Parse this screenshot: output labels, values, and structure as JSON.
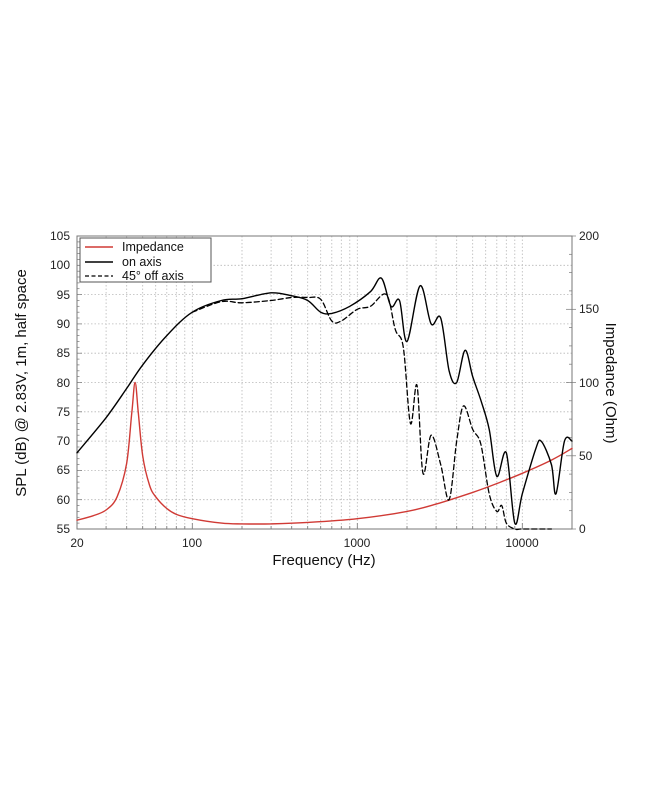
{
  "chart_data": {
    "type": "line",
    "title": "",
    "xlabel": "Frequency (Hz)",
    "ylabel": "SPL (dB) @ 2.83V, 1m, half space",
    "y2label": "Impedance (Ohm)",
    "xscale": "log",
    "xlim": [
      20,
      20000
    ],
    "ylim": [
      55,
      105
    ],
    "y2lim": [
      0,
      200
    ],
    "grid": true,
    "legend_position": "upper left",
    "x_ticks": [
      "20",
      "100",
      "1000",
      "10000"
    ],
    "y_ticks": [
      "55",
      "60",
      "65",
      "70",
      "75",
      "80",
      "85",
      "90",
      "95",
      "100",
      "105"
    ],
    "y2_ticks": [
      "0",
      "50",
      "100",
      "150",
      "200"
    ],
    "series": [
      {
        "name": "Impedance",
        "axis": "right",
        "color": "#d03a35",
        "style": "solid",
        "x": [
          20,
          25,
          30,
          35,
          40,
          43,
          45,
          47,
          50,
          55,
          60,
          70,
          80,
          100,
          150,
          200,
          300,
          500,
          1000,
          2000,
          3000,
          5000,
          7000,
          10000,
          15000,
          20000
        ],
        "values": [
          6,
          9,
          13,
          22,
          45,
          80,
          100,
          80,
          50,
          30,
          22,
          14,
          10,
          7,
          4,
          3.5,
          3.5,
          4.5,
          7,
          12,
          17,
          25,
          31,
          38,
          47,
          55
        ]
      },
      {
        "name": "on axis",
        "axis": "left",
        "color": "#000000",
        "style": "solid",
        "x": [
          20,
          30,
          40,
          50,
          70,
          100,
          150,
          200,
          300,
          400,
          500,
          600,
          700,
          900,
          1200,
          1400,
          1600,
          1800,
          2000,
          2400,
          2800,
          3200,
          3600,
          4000,
          4500,
          5000,
          5600,
          6300,
          7000,
          8000,
          9000,
          10000,
          12000,
          13000,
          15000,
          16000,
          18000,
          20000
        ],
        "values": [
          68,
          74,
          79,
          83,
          88,
          92,
          94,
          94.3,
          95.3,
          94.8,
          94,
          92,
          91.8,
          93,
          95.5,
          97.8,
          93,
          94,
          87,
          96.5,
          90,
          91,
          82,
          80,
          85.5,
          81,
          77,
          72,
          64,
          68,
          56,
          61,
          68.5,
          70,
          66,
          61,
          70,
          70
        ]
      },
      {
        "name": "45° off axis",
        "axis": "left",
        "color": "#000000",
        "style": "dashed",
        "x": [
          100,
          150,
          200,
          300,
          400,
          500,
          600,
          700,
          800,
          1000,
          1200,
          1500,
          1700,
          1900,
          2100,
          2300,
          2500,
          2800,
          3200,
          3600,
          4000,
          4400,
          5000,
          5600,
          6300,
          7000,
          7500,
          8000,
          9000,
          10000,
          14000,
          15000
        ],
        "values": [
          92,
          93.8,
          93.6,
          94,
          94.5,
          94.5,
          94.2,
          90.5,
          90.5,
          92.5,
          93,
          95,
          89,
          86,
          73,
          79.5,
          64.5,
          71,
          66,
          60,
          70,
          76,
          72,
          69.5,
          61,
          58,
          59,
          56,
          52,
          50,
          55,
          55
        ]
      }
    ]
  },
  "legend": {
    "items": [
      {
        "label": "Impedance",
        "color": "#d03a35",
        "style": "solid"
      },
      {
        "label": "on axis",
        "color": "#000000",
        "style": "solid"
      },
      {
        "label": "45° off axis",
        "color": "#000000",
        "style": "dashed"
      }
    ]
  },
  "axes": {
    "xlabel": "Frequency (Hz)",
    "ylabel": "SPL (dB) @ 2.83V, 1m, half space",
    "y2label": "Impedance (Ohm)",
    "x_ticks": [
      "20",
      "100",
      "1000",
      "10000"
    ],
    "y_ticks": [
      "55",
      "60",
      "65",
      "70",
      "75",
      "80",
      "85",
      "90",
      "95",
      "100",
      "105"
    ],
    "y2_ticks": [
      "0",
      "50",
      "100",
      "150",
      "200"
    ]
  }
}
